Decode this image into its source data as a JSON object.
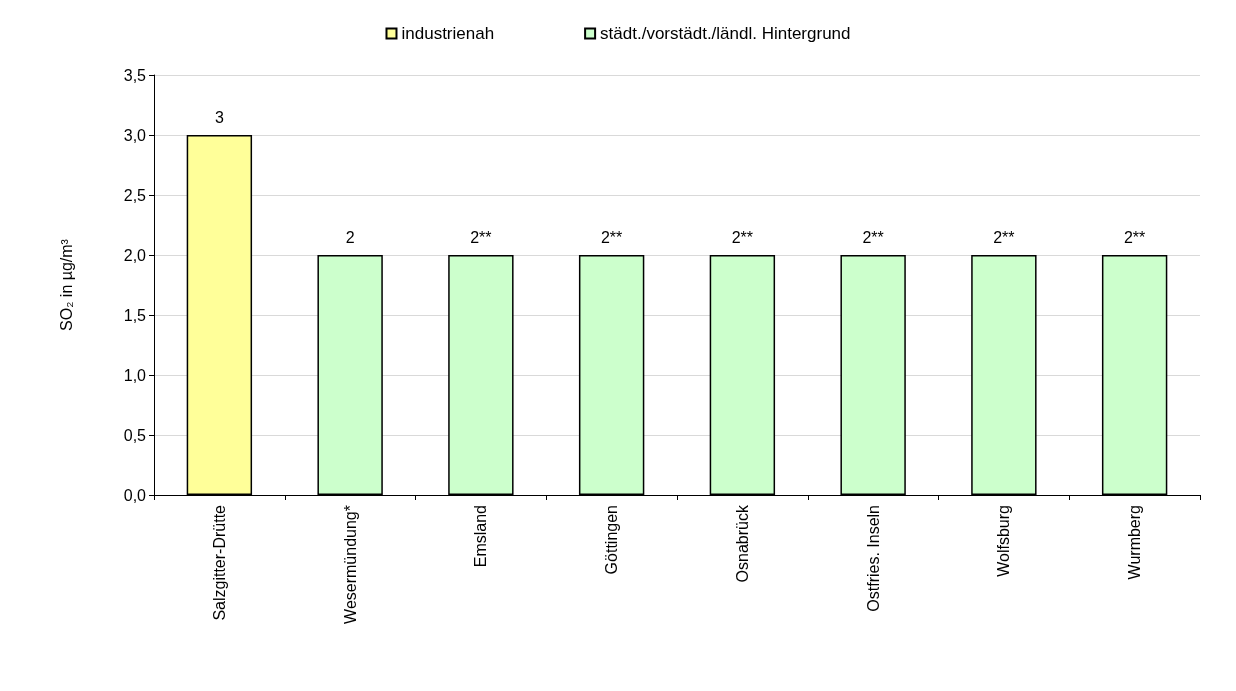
{
  "chart_data": {
    "type": "bar",
    "ylabel": "SO₂ in µg/m³",
    "categories": [
      "Salzgitter-Drütte",
      "Wesermündung*",
      "Emsland",
      "Göttingen",
      "Osnabrück",
      "Ostfries. Inseln",
      "Wolfsburg",
      "Wurmberg"
    ],
    "series": [
      {
        "name": "industrienah",
        "color": "#ffff99",
        "values": [
          3,
          null,
          null,
          null,
          null,
          null,
          null,
          null
        ],
        "value_labels": [
          "3",
          null,
          null,
          null,
          null,
          null,
          null,
          null
        ]
      },
      {
        "name": "städt./vorstädt./ländl. Hintergrund",
        "color": "#ccffcc",
        "values": [
          null,
          2,
          2,
          2,
          2,
          2,
          2,
          2
        ],
        "value_labels": [
          null,
          "2",
          "2**",
          "2**",
          "2**",
          "2**",
          "2**",
          "2**"
        ]
      }
    ],
    "stacked": true,
    "ylim": [
      0,
      3.5
    ],
    "yticks": [
      {
        "value": 0,
        "label": "0,0"
      },
      {
        "value": 0.5,
        "label": "0,5"
      },
      {
        "value": 1,
        "label": "1,0"
      },
      {
        "value": 1.5,
        "label": "1,5"
      },
      {
        "value": 2,
        "label": "2,0"
      },
      {
        "value": 2.5,
        "label": "2,5"
      },
      {
        "value": 3,
        "label": "3,0"
      },
      {
        "value": 3.5,
        "label": "3,5"
      }
    ],
    "grid": "y",
    "legend": "top"
  }
}
